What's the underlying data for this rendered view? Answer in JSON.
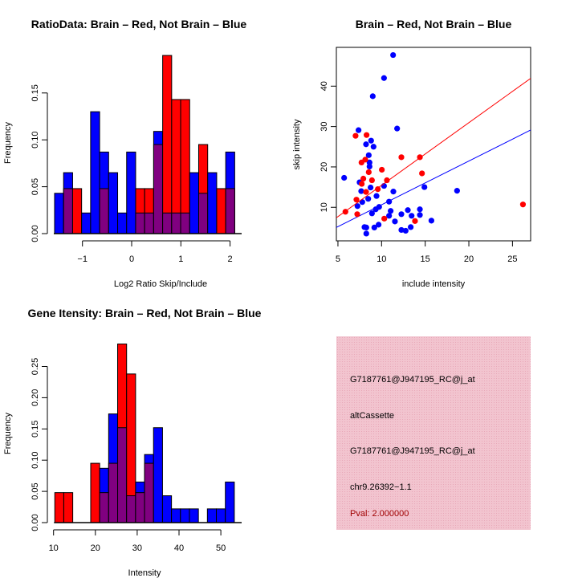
{
  "colors": {
    "blue": "#0000ff",
    "red": "#ff0000",
    "overlap": "#800080",
    "panel_bg": "#f2c4cf",
    "pval": "#a00000"
  },
  "chart_data": [
    {
      "type": "bar",
      "id": "ratio",
      "title": "RatioData: Brain – Red, Not Brain – Blue",
      "xlabel": "Log2 Ratio Skip/Include",
      "ylabel": "Frequency",
      "bin_start": -1.566,
      "bin_width": 0.183,
      "xticks": [
        -1,
        0,
        1,
        2
      ],
      "xtick_labels": [
        "−1",
        "0",
        "1",
        "2"
      ],
      "yticks": [
        0,
        0.05,
        0.1,
        0.15
      ],
      "ytick_labels": [
        "0.00",
        "0.05",
        "0.10",
        "0.15"
      ],
      "series": [
        {
          "name": "Not Brain",
          "color": "blue",
          "values": [
            0.043,
            0.065,
            0,
            0.022,
            0.13,
            0.087,
            0.065,
            0.022,
            0.087,
            0.022,
            0.022,
            0.109,
            0.022,
            0.022,
            0.022,
            0.065,
            0.043,
            0.065,
            0,
            0.087
          ]
        },
        {
          "name": "Brain",
          "color": "red",
          "values": [
            0,
            0.048,
            0.048,
            0,
            0,
            0.048,
            0,
            0,
            0,
            0.048,
            0.048,
            0.095,
            0.19,
            0.143,
            0.143,
            0,
            0.095,
            0,
            0.048,
            0.048
          ]
        }
      ]
    },
    {
      "type": "scatter",
      "id": "scatter",
      "title": "Brain – Red, Not Brain – Blue",
      "xlabel": "include intensity",
      "ylabel": "skip intensity",
      "xlim": [
        4.82,
        27.08
      ],
      "ylim": [
        1.7,
        49.6
      ],
      "xticks": [
        5,
        10,
        15,
        20,
        25
      ],
      "yticks": [
        10,
        20,
        30,
        40
      ],
      "series": [
        {
          "name": "Not Brain",
          "color": "blue",
          "fit": {
            "slope": 1.083,
            "intercept": -0.2
          },
          "points": [
            [
              11.32,
              47.7
            ],
            [
              10.28,
              42.0
            ],
            [
              8.99,
              37.5
            ],
            [
              11.78,
              29.5
            ],
            [
              7.36,
              29.1
            ],
            [
              8.8,
              26.5
            ],
            [
              8.22,
              25.6
            ],
            [
              9.08,
              25.0
            ],
            [
              8.53,
              22.9
            ],
            [
              8.62,
              21.1
            ],
            [
              8.62,
              20.1
            ],
            [
              5.71,
              17.3
            ],
            [
              7.48,
              16.2
            ],
            [
              10.28,
              15.3
            ],
            [
              8.74,
              14.9
            ],
            [
              14.91,
              15.0
            ],
            [
              7.67,
              14.0
            ],
            [
              11.35,
              13.9
            ],
            [
              18.65,
              14.1
            ],
            [
              9.42,
              12.8
            ],
            [
              8.47,
              12.1
            ],
            [
              7.79,
              11.3
            ],
            [
              10.86,
              11.4
            ],
            [
              7.24,
              10.3
            ],
            [
              9.72,
              10.1
            ],
            [
              9.33,
              9.5
            ],
            [
              13.01,
              9.3
            ],
            [
              14.39,
              9.5
            ],
            [
              11.04,
              9.1
            ],
            [
              8.9,
              8.5
            ],
            [
              12.27,
              8.3
            ],
            [
              13.44,
              7.9
            ],
            [
              14.39,
              8.1
            ],
            [
              10.86,
              7.9
            ],
            [
              11.53,
              6.5
            ],
            [
              15.71,
              6.7
            ],
            [
              8.04,
              5.1
            ],
            [
              8.25,
              5.0
            ],
            [
              9.17,
              5.0
            ],
            [
              9.66,
              5.7
            ],
            [
              13.34,
              5.1
            ],
            [
              12.27,
              4.4
            ],
            [
              12.76,
              4.2
            ],
            [
              8.25,
              3.5
            ]
          ]
        },
        {
          "name": "Brain",
          "color": "red",
          "fit": {
            "slope": 1.55,
            "intercept": -0.05
          },
          "points": [
            [
              7.02,
              27.7
            ],
            [
              8.28,
              27.9
            ],
            [
              8.13,
              21.8
            ],
            [
              7.7,
              21.1
            ],
            [
              12.27,
              22.4
            ],
            [
              14.39,
              22.4
            ],
            [
              8.53,
              18.7
            ],
            [
              10.03,
              19.3
            ],
            [
              14.63,
              18.4
            ],
            [
              7.91,
              17.1
            ],
            [
              8.9,
              16.7
            ],
            [
              10.61,
              16.7
            ],
            [
              7.73,
              15.8
            ],
            [
              9.57,
              14.5
            ],
            [
              8.22,
              13.8
            ],
            [
              7.12,
              11.9
            ],
            [
              5.86,
              8.9
            ],
            [
              7.21,
              8.3
            ],
            [
              10.31,
              7.2
            ],
            [
              13.83,
              6.6
            ],
            [
              26.2,
              10.7
            ]
          ]
        }
      ]
    },
    {
      "type": "bar",
      "id": "intensity",
      "title": "Gene Itensity: Brain – Red, Not Brain – Blue",
      "xlabel": "Intensity",
      "ylabel": "Frequency",
      "bin_start": 10.3,
      "bin_width": 2.146,
      "xticks": [
        10,
        20,
        30,
        40,
        50
      ],
      "xtick_labels": [
        "10",
        "20",
        "30",
        "40",
        "50"
      ],
      "yticks": [
        0,
        0.05,
        0.1,
        0.15,
        0.2,
        0.25
      ],
      "ytick_labels": [
        "0.00",
        "0.05",
        "0.10",
        "0.15",
        "0.20",
        "0.25"
      ],
      "series": [
        {
          "name": "Not Brain",
          "color": "blue",
          "values": [
            0,
            0,
            0,
            0,
            0,
            0.087,
            0.174,
            0.152,
            0.043,
            0.065,
            0.109,
            0.152,
            0.043,
            0.022,
            0.022,
            0.022,
            0,
            0.022,
            0.022,
            0.065
          ]
        },
        {
          "name": "Brain",
          "color": "red",
          "values": [
            0.048,
            0.048,
            0,
            0,
            0.095,
            0.048,
            0.095,
            0.286,
            0.238,
            0.048,
            0.095,
            0,
            0,
            0,
            0,
            0,
            0,
            0,
            0,
            0
          ]
        }
      ]
    }
  ],
  "info_panel": {
    "lines": [
      "G7187761@J947195_RC@j_at",
      "altCassette",
      "G7187761@J947195_RC@j_at",
      "chr9.26392−1.1"
    ],
    "pval": "Pval: 2.000000"
  }
}
